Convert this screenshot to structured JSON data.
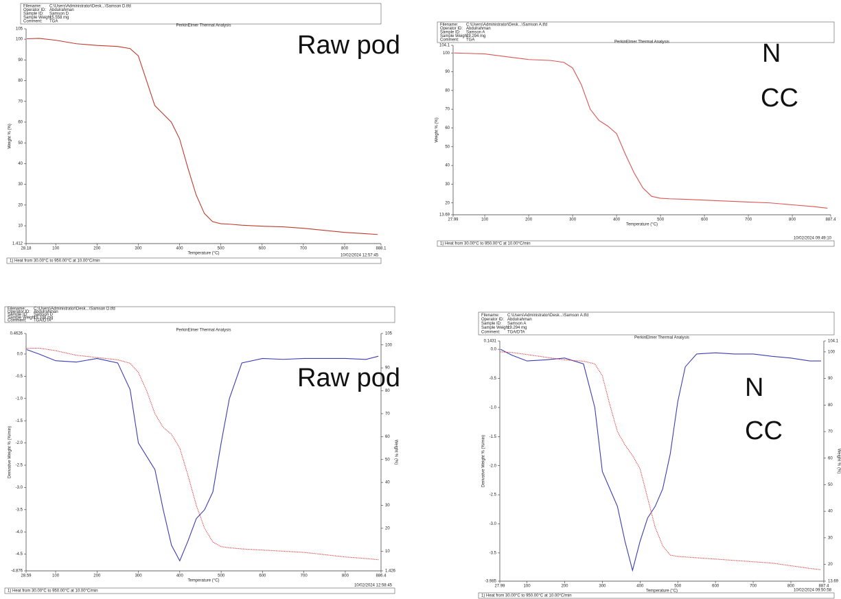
{
  "chart_data": [
    {
      "type": "line",
      "header": [
        [
          "Filename:",
          "C:\\Users\\Administrator\\Desk...\\Samson D.tfd"
        ],
        [
          "Operator ID:",
          "Abdulrahman"
        ],
        [
          "Sample ID:",
          "Samson D"
        ],
        [
          "Sample Weight:",
          "15.558 mg"
        ],
        [
          "Comment:",
          "TGA"
        ]
      ],
      "title": "PerkinElmer Thermal Analysis",
      "xlabel": "Temperature (°C)",
      "ylabel": "Weight % (%)",
      "footer": "1) Heat from 30.00°C to 950.00°C at 10.00°C/min",
      "timestamp": "10/02/2024 12:57:45",
      "annotation": [
        "Raw pod"
      ],
      "xlim": [
        28.18,
        888.1
      ],
      "xticks": [
        28.18,
        100,
        200,
        300,
        400,
        500,
        600,
        700,
        800,
        888.1
      ],
      "ylim": [
        1.412,
        105
      ],
      "yticks": [
        1.412,
        10,
        20,
        30,
        40,
        50,
        60,
        70,
        80,
        90,
        100,
        105
      ],
      "x": [
        30,
        60,
        100,
        150,
        200,
        250,
        280,
        300,
        320,
        340,
        360,
        380,
        400,
        420,
        440,
        460,
        480,
        500,
        520,
        550,
        600,
        650,
        700,
        750,
        800,
        850,
        880
      ],
      "series": [
        {
          "color": "#c0392b",
          "style": "solid",
          "axis": "y",
          "values": [
            100.2,
            100.4,
            99.5,
            97.8,
            97,
            96.5,
            95.5,
            92,
            80,
            68,
            64,
            60,
            52,
            38,
            25,
            16,
            12,
            11,
            10.8,
            10.3,
            9.8,
            9.5,
            8.8,
            7.8,
            6.8,
            6.2,
            5.8
          ]
        }
      ]
    },
    {
      "type": "line",
      "header": [
        [
          "Filename:",
          "C:\\Users\\Administrator\\Desk...\\Samson A.tfd"
        ],
        [
          "Operator ID:",
          "Abdulrahman"
        ],
        [
          "Sample ID:",
          "Samson A"
        ],
        [
          "Sample Weight:",
          "19.294 mg"
        ],
        [
          "Comment:",
          "TGA"
        ]
      ],
      "title": "PerkinElmer Thermal Analysis",
      "xlabel": "Temperature (°C)",
      "ylabel": "Weight % (%)",
      "footer": "1) Heat from 30.00°C to 950.00°C at 10.00°C/min",
      "timestamp": "10/02/2024 09:49:10",
      "annotation": [
        "N",
        "CC"
      ],
      "xlim": [
        27.99,
        887.4
      ],
      "xticks": [
        27.99,
        100,
        200,
        300,
        400,
        500,
        600,
        700,
        800,
        887.4
      ],
      "ylim": [
        13.69,
        104.1
      ],
      "yticks": [
        13.69,
        20,
        30,
        40,
        50,
        60,
        70,
        80,
        90,
        100,
        104.1
      ],
      "x": [
        30,
        60,
        100,
        150,
        200,
        250,
        280,
        300,
        320,
        340,
        360,
        380,
        400,
        420,
        440,
        460,
        480,
        500,
        520,
        550,
        600,
        650,
        700,
        750,
        800,
        850,
        880
      ],
      "series": [
        {
          "color": "#d9534f",
          "style": "solid",
          "axis": "y",
          "values": [
            100,
            99.8,
            99.5,
            98,
            96.5,
            96,
            95,
            92,
            83,
            70,
            64,
            61,
            57,
            46,
            36,
            28,
            23.5,
            22.5,
            22.2,
            22,
            21.5,
            21,
            20.5,
            20,
            19,
            18,
            17.2
          ]
        }
      ]
    },
    {
      "type": "line",
      "header": [
        [
          "Filename:",
          "C:\\Users\\Administrator\\Desk...\\Samson D.tfd"
        ],
        [
          "Operator ID:",
          "Abdulrahman"
        ],
        [
          "Sample ID:",
          "Samson D"
        ],
        [
          "Sample Weight:",
          "19.338 mg"
        ],
        [
          "Comment:",
          "TGA/DTA"
        ]
      ],
      "title": "PerkinElmer Thermal Analysis",
      "xlabel": "Temperature (°C)",
      "ylabel": "Derivative Weight % (%/min)",
      "y2label": "Weight % (%)",
      "footer": "1) Heat from 30.00°C to 950.00°C at 10.00°C/min",
      "timestamp": "10/02/2024 12:58:45",
      "annotation": [
        "Raw pod"
      ],
      "xlim": [
        28.59,
        886.4
      ],
      "xticks": [
        28.59,
        100,
        200,
        300,
        400,
        500,
        600,
        700,
        800,
        886.4
      ],
      "ylim": [
        -4.876,
        0.4626
      ],
      "yticks": [
        -4.876,
        -4.5,
        {
          "value": -4,
          "label": "-4.0"
        },
        -3.5,
        {
          "value": -3,
          "label": "-3.0"
        },
        -2.5,
        {
          "value": -2,
          "label": "-2.0"
        },
        -1.5,
        {
          "value": -1,
          "label": "-1.0"
        },
        -0.5,
        {
          "value": 0,
          "label": "0.0"
        },
        0.4626
      ],
      "y2lim": [
        1.426,
        105
      ],
      "y2ticks": [
        1.426,
        10,
        20,
        30,
        40,
        50,
        60,
        70,
        80,
        90,
        100,
        105
      ],
      "x": [
        30,
        60,
        100,
        150,
        200,
        250,
        280,
        300,
        320,
        340,
        360,
        380,
        400,
        420,
        440,
        460,
        480,
        500,
        520,
        550,
        600,
        650,
        700,
        750,
        800,
        850,
        880
      ],
      "series": [
        {
          "color": "#3b3bb3",
          "style": "solid",
          "axis": "y",
          "values": [
            0.1,
            0,
            -0.15,
            -0.18,
            -0.1,
            -0.2,
            -0.8,
            -2.0,
            -2.3,
            -2.6,
            -3.5,
            -4.3,
            -4.65,
            -4.2,
            -3.7,
            -3.5,
            -3.1,
            -2.0,
            -1.0,
            -0.2,
            -0.1,
            -0.12,
            -0.1,
            -0.1,
            -0.1,
            -0.12,
            -0.05
          ]
        },
        {
          "color": "#e03030",
          "style": "dotted",
          "axis": "y2",
          "values": [
            98.5,
            98.6,
            97.5,
            95.5,
            94.5,
            93.5,
            92,
            88,
            80,
            70,
            64,
            61,
            55,
            43,
            30,
            20,
            14,
            12,
            11.5,
            11,
            10.5,
            10,
            9.5,
            8.5,
            7.5,
            6.8,
            6.3
          ]
        }
      ]
    },
    {
      "type": "line",
      "header": [
        [
          "Filename:",
          "C:\\Users\\Administrator\\Desk...\\Samson A.tfd"
        ],
        [
          "Operator ID:",
          "Abdulrahman"
        ],
        [
          "Sample ID:",
          "Samson A"
        ],
        [
          "Sample Weight:",
          "19.294 mg"
        ],
        [
          "Comment:",
          "TGA/DTA"
        ]
      ],
      "title": "PerkinElmer Thermal Analysis",
      "xlabel": "Temperature (°C)",
      "ylabel": "Derivative Weight % (%/min)",
      "y2label": "Weight % (%)",
      "footer": "1) Heat from 30.00°C to 950.00°C at 10.00°C/min",
      "timestamp": "10/02/2024 09:50:58",
      "annotation": [
        "N",
        "CC"
      ],
      "xlim": [
        27.99,
        887.4
      ],
      "xticks": [
        27.99,
        100,
        200,
        300,
        400,
        500,
        600,
        700,
        800,
        887.4
      ],
      "ylim": [
        -3.985,
        0.1431
      ],
      "yticks": [
        -3.985,
        -3.5,
        {
          "value": -3,
          "label": "-3.0"
        },
        -2.5,
        {
          "value": -2,
          "label": "-2.0"
        },
        -1.5,
        {
          "value": -1,
          "label": "-1.0"
        },
        -0.5,
        {
          "value": 0,
          "label": "0.0"
        },
        0.1431
      ],
      "y2lim": [
        13.69,
        104.1
      ],
      "y2ticks": [
        13.69,
        20,
        30,
        40,
        50,
        60,
        70,
        80,
        90,
        100,
        104.1
      ],
      "x": [
        30,
        60,
        100,
        150,
        200,
        250,
        280,
        300,
        320,
        340,
        360,
        380,
        400,
        420,
        440,
        460,
        480,
        500,
        520,
        550,
        600,
        650,
        700,
        750,
        800,
        850,
        880
      ],
      "series": [
        {
          "color": "#3b3bb3",
          "style": "solid",
          "axis": "y",
          "values": [
            0,
            -0.1,
            -0.2,
            -0.18,
            -0.15,
            -0.25,
            -1.0,
            -2.1,
            -2.4,
            -2.7,
            -3.3,
            -3.8,
            -3.3,
            -2.9,
            -2.7,
            -2.4,
            -1.8,
            -0.9,
            -0.3,
            -0.08,
            -0.06,
            -0.08,
            -0.08,
            -0.12,
            -0.15,
            -0.2,
            -0.2
          ]
        },
        {
          "color": "#e03030",
          "style": "dotted",
          "axis": "y2",
          "values": [
            100,
            99.8,
            99,
            98,
            97,
            96.5,
            95.5,
            91,
            80,
            70,
            65,
            61,
            56,
            45,
            34,
            27,
            23.5,
            23,
            22.8,
            22.5,
            22,
            21.5,
            21,
            20.5,
            19.5,
            18.5,
            18
          ]
        }
      ]
    }
  ]
}
